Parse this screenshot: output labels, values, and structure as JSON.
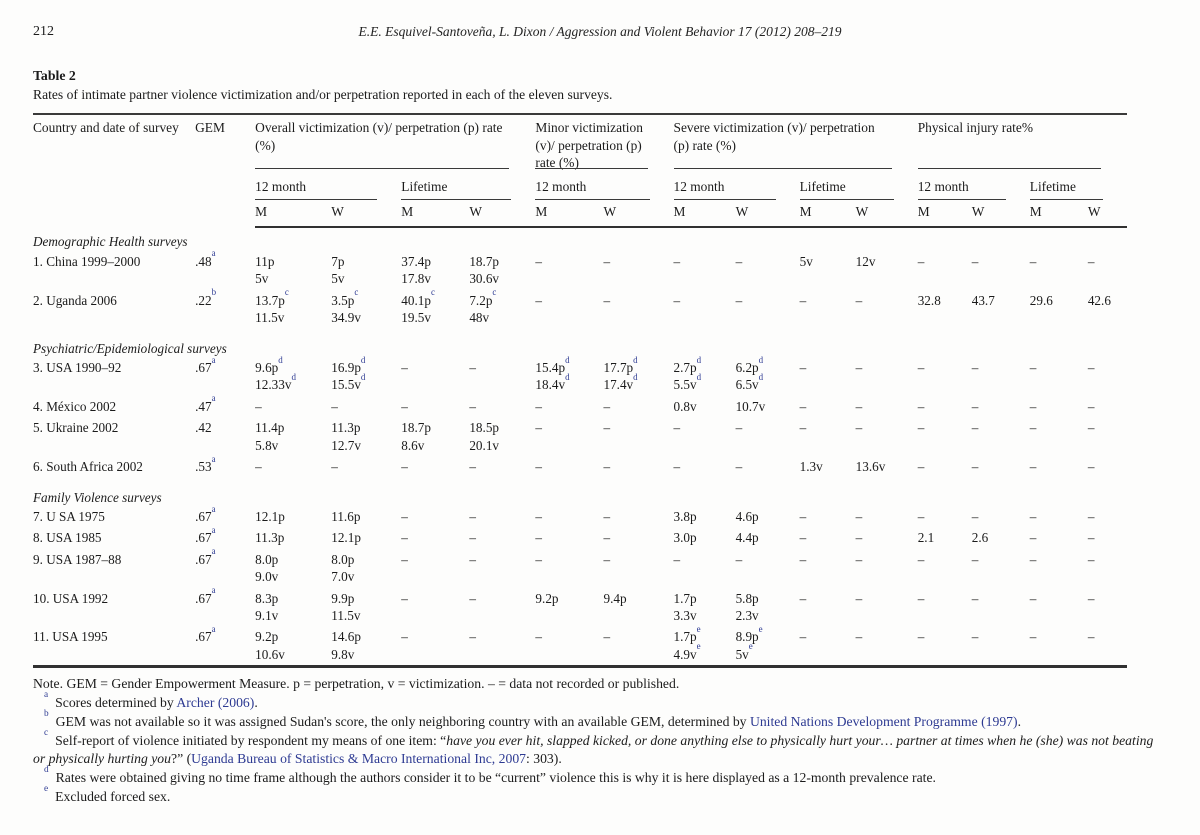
{
  "page": {
    "number": "212",
    "running_title": "E.E. Esquivel-Santoveña, L. Dixon / Aggression and Violent Behavior 17 (2012) 208–219"
  },
  "table": {
    "label": "Table 2",
    "caption": "Rates of intimate partner violence victimization and/or perpetration reported in each of the eleven surveys.",
    "header": {
      "country": "Country and date of survey",
      "gem": "GEM",
      "m": "M",
      "w": "W",
      "groups": [
        {
          "label": "Overall victimization (v)/ perpetration (p) rate (%)",
          "periods": [
            "12 month",
            "Lifetime"
          ]
        },
        {
          "label": "Minor victimization (v)/ perpetration (p) rate (%)",
          "periods": [
            "12 month"
          ]
        },
        {
          "label": "Severe victimization (v)/ perpetration (p) rate (%)",
          "periods": [
            "12 month",
            "Lifetime"
          ]
        },
        {
          "label": "Physical injury rate%",
          "periods": [
            "12 month",
            "Lifetime"
          ]
        }
      ]
    },
    "col_count": 16,
    "sections": [
      {
        "title": "Demographic Health surveys",
        "rows": [
          {
            "country": "1. China 1999–2000",
            "gem": ".48^a",
            "cells": [
              [
                "11p",
                "5v"
              ],
              [
                "7p",
                "5v"
              ],
              [
                "37.4p",
                "17.8v"
              ],
              [
                "18.7p",
                "30.6v"
              ],
              [
                "–"
              ],
              [
                "–"
              ],
              [
                "–"
              ],
              [
                "–"
              ],
              [
                "5v"
              ],
              [
                "12v"
              ],
              [
                "–"
              ],
              [
                "–"
              ],
              [
                "–"
              ],
              [
                "–"
              ]
            ]
          },
          {
            "country": "2. Uganda 2006",
            "gem": ".22^b",
            "cells": [
              [
                "13.7p^c",
                "11.5v"
              ],
              [
                "3.5p^c",
                "34.9v"
              ],
              [
                "40.1p^c",
                "19.5v"
              ],
              [
                "7.2p^c",
                "48v"
              ],
              [
                "–"
              ],
              [
                "–"
              ],
              [
                "–"
              ],
              [
                "–"
              ],
              [
                "–"
              ],
              [
                "–"
              ],
              [
                "32.8"
              ],
              [
                "43.7"
              ],
              [
                "29.6"
              ],
              [
                "42.6"
              ]
            ]
          }
        ]
      },
      {
        "title": "Psychiatric/Epidemiological surveys",
        "rows": [
          {
            "country": "3. USA 1990–92",
            "gem": ".67^a",
            "cells": [
              [
                "9.6p^d",
                "12.33v^d"
              ],
              [
                "16.9p^d",
                "15.5v^d"
              ],
              [
                "–"
              ],
              [
                "–"
              ],
              [
                "15.4p^d",
                "18.4v^d"
              ],
              [
                "17.7p^d",
                "17.4v^d"
              ],
              [
                "2.7p^d",
                "5.5v^d"
              ],
              [
                "6.2p^d",
                "6.5v^d"
              ],
              [
                "–"
              ],
              [
                "–"
              ],
              [
                "–"
              ],
              [
                "–"
              ],
              [
                "–"
              ],
              [
                "–"
              ]
            ]
          },
          {
            "country": "4. México 2002",
            "gem": ".47^a",
            "cells": [
              [
                "–"
              ],
              [
                "–"
              ],
              [
                "–"
              ],
              [
                "–"
              ],
              [
                "–"
              ],
              [
                "–"
              ],
              [
                "0.8v"
              ],
              [
                "10.7v"
              ],
              [
                "–"
              ],
              [
                "–"
              ],
              [
                "–"
              ],
              [
                "–"
              ],
              [
                "–"
              ],
              [
                "–"
              ]
            ]
          },
          {
            "country": "5. Ukraine 2002",
            "gem": ".42",
            "cells": [
              [
                "11.4p",
                "5.8v"
              ],
              [
                "11.3p",
                "12.7v"
              ],
              [
                "18.7p",
                "8.6v"
              ],
              [
                "18.5p",
                "20.1v"
              ],
              [
                "–"
              ],
              [
                "–"
              ],
              [
                "–"
              ],
              [
                "–"
              ],
              [
                "–"
              ],
              [
                "–"
              ],
              [
                "–"
              ],
              [
                "–"
              ],
              [
                "–"
              ],
              [
                "–"
              ]
            ]
          },
          {
            "country": "6. South Africa 2002",
            "gem": ".53^a",
            "cells": [
              [
                "–"
              ],
              [
                "–"
              ],
              [
                "–"
              ],
              [
                "–"
              ],
              [
                "–"
              ],
              [
                "–"
              ],
              [
                "–"
              ],
              [
                "–"
              ],
              [
                "1.3v"
              ],
              [
                "13.6v"
              ],
              [
                "–"
              ],
              [
                "–"
              ],
              [
                "–"
              ],
              [
                "–"
              ]
            ]
          }
        ]
      },
      {
        "title": "Family Violence surveys",
        "rows": [
          {
            "country": "7. U SA 1975",
            "gem": ".67^a",
            "cells": [
              [
                "12.1p"
              ],
              [
                "11.6p"
              ],
              [
                "–"
              ],
              [
                "–"
              ],
              [
                "–"
              ],
              [
                "–"
              ],
              [
                "3.8p"
              ],
              [
                "4.6p"
              ],
              [
                "–"
              ],
              [
                "–"
              ],
              [
                "–"
              ],
              [
                "–"
              ],
              [
                "–"
              ],
              [
                "–"
              ]
            ]
          },
          {
            "country": "8. USA 1985",
            "gem": ".67^a",
            "cells": [
              [
                "11.3p"
              ],
              [
                "12.1p"
              ],
              [
                "–"
              ],
              [
                "–"
              ],
              [
                "–"
              ],
              [
                "–"
              ],
              [
                "3.0p"
              ],
              [
                "4.4p"
              ],
              [
                "–"
              ],
              [
                "–"
              ],
              [
                "2.1"
              ],
              [
                "2.6"
              ],
              [
                "–"
              ],
              [
                "–"
              ]
            ]
          },
          {
            "country": "9. USA 1987–88",
            "gem": ".67^a",
            "cells": [
              [
                "8.0p",
                "9.0v"
              ],
              [
                "8.0p",
                "7.0v"
              ],
              [
                "–"
              ],
              [
                "–"
              ],
              [
                "–"
              ],
              [
                "–"
              ],
              [
                "–"
              ],
              [
                "–"
              ],
              [
                "–"
              ],
              [
                "–"
              ],
              [
                "–"
              ],
              [
                "–"
              ],
              [
                "–"
              ],
              [
                "–"
              ]
            ]
          },
          {
            "country": "10. USA 1992",
            "gem": ".67^a",
            "cells": [
              [
                "8.3p",
                "9.1v"
              ],
              [
                "9.9p",
                "11.5v"
              ],
              [
                "–"
              ],
              [
                "–"
              ],
              [
                "9.2p"
              ],
              [
                "9.4p"
              ],
              [
                "1.7p",
                "3.3v"
              ],
              [
                "5.8p",
                "2.3v"
              ],
              [
                "–"
              ],
              [
                "–"
              ],
              [
                "–"
              ],
              [
                "–"
              ],
              [
                "–"
              ],
              [
                "–"
              ]
            ]
          },
          {
            "country": "11. USA 1995",
            "gem": ".67^a",
            "cells": [
              [
                "9.2p",
                "10.6v"
              ],
              [
                "14.6p",
                "9.8v"
              ],
              [
                "–"
              ],
              [
                "–"
              ],
              [
                "–"
              ],
              [
                "–"
              ],
              [
                "1.7p^e",
                "4.9v^e"
              ],
              [
                "8.9p^e",
                "5v^e"
              ],
              [
                "–"
              ],
              [
                "–"
              ],
              [
                "–"
              ],
              [
                "–"
              ],
              [
                "–"
              ],
              [
                "–"
              ]
            ]
          }
        ]
      }
    ]
  },
  "note": "Note. GEM = Gender Empowerment Measure. p = perpetration, v = victimization. – = data not recorded or published.",
  "footnotes": [
    {
      "marker": "a",
      "segments": [
        {
          "t": "Scores determined by ",
          "s": "p"
        },
        {
          "t": "Archer (2006)",
          "s": "l"
        },
        {
          "t": ".",
          "s": "p"
        }
      ]
    },
    {
      "marker": "b",
      "segments": [
        {
          "t": "GEM was not available so it was assigned Sudan's score, the only neighboring country with an available GEM, determined by ",
          "s": "p"
        },
        {
          "t": "United Nations Development Programme (1997)",
          "s": "l"
        },
        {
          "t": ".",
          "s": "p"
        }
      ]
    },
    {
      "marker": "c",
      "segments": [
        {
          "t": "Self-report of violence initiated by respondent my means of one item: “",
          "s": "p"
        },
        {
          "t": "have you ever hit, slapped kicked, or done anything else to physically hurt your… partner at times when he (she) was not beating or physically hurting you",
          "s": "i"
        },
        {
          "t": "?” (",
          "s": "p"
        },
        {
          "t": "Uganda Bureau of Statistics & Macro International Inc, 2007",
          "s": "l"
        },
        {
          "t": ": 303).",
          "s": "p"
        }
      ]
    },
    {
      "marker": "d",
      "segments": [
        {
          "t": "Rates were obtained giving no time frame although the authors consider it to be “current” violence this is why it is here displayed as a 12-month prevalence rate.",
          "s": "p"
        }
      ]
    },
    {
      "marker": "e",
      "segments": [
        {
          "t": "Excluded forced sex.",
          "s": "p"
        }
      ]
    }
  ]
}
